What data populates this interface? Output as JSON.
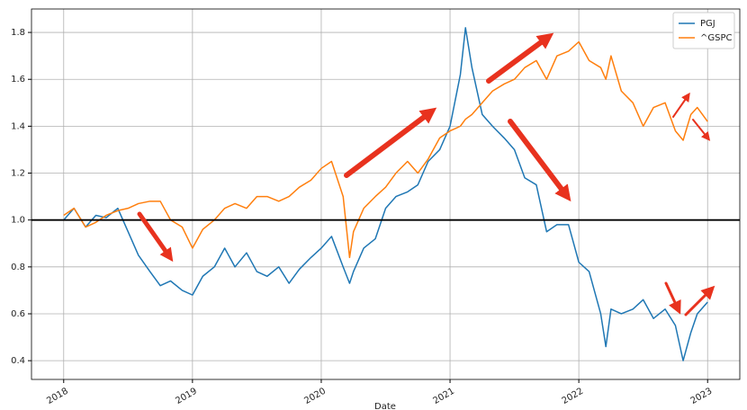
{
  "chart_data": {
    "type": "line",
    "x_label": "Date",
    "x": [
      2018.0,
      2018.08,
      2018.17,
      2018.25,
      2018.33,
      2018.42,
      2018.5,
      2018.58,
      2018.67,
      2018.75,
      2018.83,
      2018.92,
      2019.0,
      2019.08,
      2019.17,
      2019.25,
      2019.33,
      2019.42,
      2019.5,
      2019.58,
      2019.67,
      2019.75,
      2019.83,
      2019.92,
      2020.0,
      2020.08,
      2020.17,
      2020.22,
      2020.25,
      2020.33,
      2020.42,
      2020.5,
      2020.58,
      2020.67,
      2020.75,
      2020.83,
      2020.92,
      2021.0,
      2021.08,
      2021.12,
      2021.17,
      2021.25,
      2021.33,
      2021.42,
      2021.5,
      2021.58,
      2021.67,
      2021.75,
      2021.83,
      2021.92,
      2022.0,
      2022.08,
      2022.17,
      2022.21,
      2022.25,
      2022.33,
      2022.42,
      2022.5,
      2022.58,
      2022.67,
      2022.75,
      2022.81,
      2022.87,
      2022.92,
      2023.0
    ],
    "series": [
      {
        "name": "PGJ",
        "color": "#1f77b4",
        "values": [
          1.0,
          1.05,
          0.97,
          1.02,
          1.01,
          1.05,
          0.95,
          0.85,
          0.78,
          0.72,
          0.74,
          0.7,
          0.68,
          0.76,
          0.8,
          0.88,
          0.8,
          0.86,
          0.78,
          0.76,
          0.8,
          0.73,
          0.79,
          0.84,
          0.88,
          0.93,
          0.8,
          0.73,
          0.78,
          0.88,
          0.92,
          1.05,
          1.1,
          1.12,
          1.15,
          1.25,
          1.3,
          1.4,
          1.62,
          1.82,
          1.65,
          1.45,
          1.4,
          1.35,
          1.3,
          1.18,
          1.15,
          0.95,
          0.98,
          0.98,
          0.82,
          0.78,
          0.6,
          0.46,
          0.62,
          0.6,
          0.62,
          0.66,
          0.58,
          0.62,
          0.55,
          0.4,
          0.52,
          0.6,
          0.65
        ]
      },
      {
        "name": "^GSPC",
        "color": "#ff7f0e",
        "values": [
          1.02,
          1.05,
          0.97,
          0.99,
          1.02,
          1.04,
          1.05,
          1.07,
          1.08,
          1.08,
          1.0,
          0.97,
          0.88,
          0.96,
          1.0,
          1.05,
          1.07,
          1.05,
          1.1,
          1.1,
          1.08,
          1.1,
          1.14,
          1.17,
          1.22,
          1.25,
          1.1,
          0.84,
          0.95,
          1.05,
          1.1,
          1.14,
          1.2,
          1.25,
          1.2,
          1.26,
          1.35,
          1.38,
          1.4,
          1.43,
          1.45,
          1.5,
          1.55,
          1.58,
          1.6,
          1.65,
          1.68,
          1.6,
          1.7,
          1.72,
          1.76,
          1.68,
          1.65,
          1.6,
          1.7,
          1.55,
          1.5,
          1.4,
          1.48,
          1.5,
          1.38,
          1.34,
          1.45,
          1.48,
          1.42
        ]
      }
    ],
    "xlim": [
      2017.75,
      2023.25
    ],
    "xticks": [
      2018,
      2019,
      2020,
      2021,
      2022,
      2023
    ],
    "ylim": [
      0.32,
      1.9
    ],
    "yticks": [
      0.4,
      0.6,
      0.8,
      {
        "value": 1,
        "label": "1.0"
      },
      1.2,
      1.4,
      1.6,
      1.8
    ],
    "hline": 1,
    "grid": true,
    "legend": "upper right"
  }
}
